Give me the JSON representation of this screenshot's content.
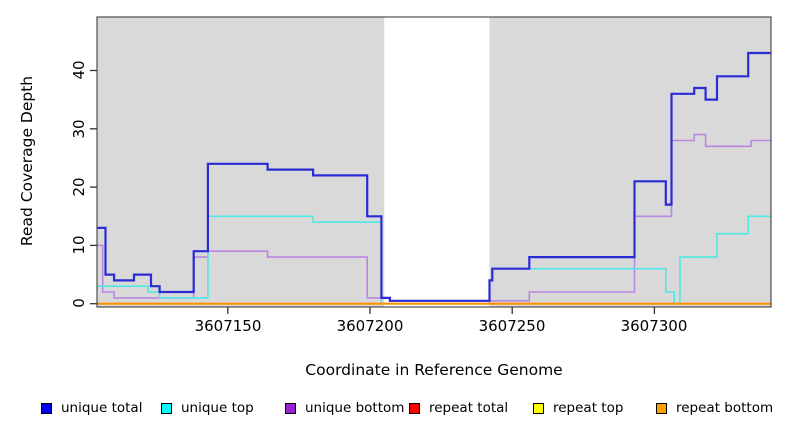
{
  "chart_data": {
    "type": "line",
    "subtype": "step-coverage",
    "title": "",
    "xlabel": "Coordinate in Reference Genome",
    "ylabel": "Read Coverage Depth",
    "xlim": [
      3607104,
      3607341
    ],
    "ylim": [
      -0.6,
      48.8
    ],
    "x_ticks": [
      3607150,
      3607200,
      3607250,
      3607300
    ],
    "y_ticks": [
      0,
      10,
      20,
      30,
      40
    ],
    "grid": false,
    "plot_bg": "#d9d9d9",
    "white_band": {
      "from": 3607205,
      "to": 3607242
    },
    "axis_color": "#4d4d4d",
    "series": [
      {
        "name": "unique total",
        "color": "#2b2bd5",
        "width": 2.2,
        "points": [
          [
            3607104,
            13
          ],
          [
            3607107,
            5
          ],
          [
            3607110,
            4
          ],
          [
            3607117,
            5
          ],
          [
            3607123,
            3
          ],
          [
            3607126,
            2
          ],
          [
            3607138,
            9
          ],
          [
            3607143,
            24
          ],
          [
            3607164,
            23
          ],
          [
            3607180,
            22
          ],
          [
            3607199,
            15
          ],
          [
            3607204,
            1
          ],
          [
            3607207,
            0.5
          ],
          [
            3607242,
            4
          ],
          [
            3607243,
            6
          ],
          [
            3607256,
            8
          ],
          [
            3607293,
            21
          ],
          [
            3607304,
            17
          ],
          [
            3607306,
            36
          ],
          [
            3607314,
            37
          ],
          [
            3607318,
            35
          ],
          [
            3607322,
            39
          ],
          [
            3607333,
            43
          ],
          [
            3607341,
            43
          ]
        ]
      },
      {
        "name": "unique top",
        "color": "#4fe8e4",
        "width": 1.6,
        "points": [
          [
            3607104,
            3
          ],
          [
            3607122,
            2
          ],
          [
            3607126,
            1
          ],
          [
            3607143,
            15
          ],
          [
            3607180,
            14
          ],
          [
            3607204,
            0
          ],
          [
            3607242,
            4
          ],
          [
            3607243,
            6
          ],
          [
            3607304,
            2
          ],
          [
            3607307,
            0
          ],
          [
            3607309,
            8
          ],
          [
            3607322,
            12
          ],
          [
            3607333,
            15
          ],
          [
            3607341,
            15
          ]
        ]
      },
      {
        "name": "unique bottom",
        "color": "#bb86e2",
        "width": 1.6,
        "points": [
          [
            3607104,
            10
          ],
          [
            3607106,
            2
          ],
          [
            3607110,
            1
          ],
          [
            3607138,
            8
          ],
          [
            3607143,
            9
          ],
          [
            3607164,
            8
          ],
          [
            3607199,
            1
          ],
          [
            3607207,
            0.5
          ],
          [
            3607256,
            2
          ],
          [
            3607293,
            15
          ],
          [
            3607306,
            28
          ],
          [
            3607314,
            29
          ],
          [
            3607318,
            27
          ],
          [
            3607334,
            28
          ],
          [
            3607341,
            28
          ]
        ]
      },
      {
        "name": "repeat total",
        "color": "#e60000",
        "width": 1.5,
        "points": [
          [
            3607104,
            0
          ],
          [
            3607341,
            0
          ]
        ]
      },
      {
        "name": "repeat top",
        "color": "#f0f000",
        "width": 1.5,
        "points": [
          [
            3607104,
            0
          ],
          [
            3607341,
            0
          ]
        ]
      },
      {
        "name": "repeat bottom",
        "color": "#ff9100",
        "width": 2.2,
        "points": [
          [
            3607104,
            0
          ],
          [
            3607341,
            0
          ]
        ]
      }
    ],
    "draw_order": [
      2,
      1,
      0,
      3,
      4,
      5
    ],
    "legend": [
      {
        "label": "unique total",
        "color": "#0000ee"
      },
      {
        "label": "unique top",
        "color": "#00ffff"
      },
      {
        "label": "unique bottom",
        "color": "#9d1fd6"
      },
      {
        "label": "repeat total",
        "color": "#ff0000"
      },
      {
        "label": "repeat top",
        "color": "#ffff00"
      },
      {
        "label": "repeat bottom",
        "color": "#ffa000"
      }
    ],
    "legend_position": "bottom"
  }
}
